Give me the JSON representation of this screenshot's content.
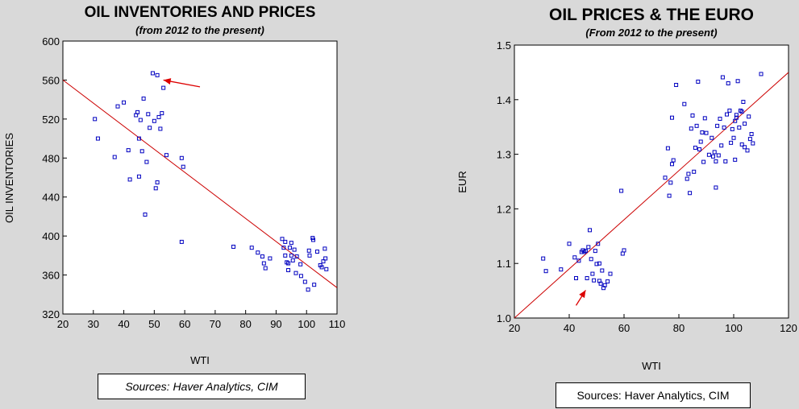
{
  "chart_data": [
    {
      "type": "scatter",
      "title": "OIL INVENTORIES AND PRICES",
      "subtitle": "(from 2012 to the present)",
      "xlabel": "WTI",
      "ylabel": "OIL INVENTORIES",
      "xlim": [
        20,
        110
      ],
      "ylim": [
        320,
        600
      ],
      "xticks": [
        "20",
        "30",
        "40",
        "50",
        "60",
        "70",
        "80",
        "90",
        "100",
        "110"
      ],
      "yticks": [
        "320",
        "360",
        "400",
        "440",
        "480",
        "520",
        "560",
        "600"
      ],
      "grid": false,
      "marker_color": "#0000c0",
      "fit_color": "#cc0000",
      "arrow_color": "#dd0000",
      "source": "Sources:  Haver Analytics, CIM",
      "fit_line": [
        [
          20,
          560
        ],
        [
          110,
          347
        ]
      ],
      "annotation_arrow": {
        "from": [
          65,
          553
        ],
        "to": [
          53,
          560
        ]
      },
      "points": [
        [
          30.5,
          520
        ],
        [
          31.5,
          500
        ],
        [
          37,
          481
        ],
        [
          38,
          533
        ],
        [
          40,
          537
        ],
        [
          41.5,
          488
        ],
        [
          42,
          458
        ],
        [
          44,
          524
        ],
        [
          44.5,
          527
        ],
        [
          45,
          500
        ],
        [
          45,
          461
        ],
        [
          45.5,
          519
        ],
        [
          46,
          487
        ],
        [
          46.5,
          541
        ],
        [
          47,
          422
        ],
        [
          47.5,
          476
        ],
        [
          48,
          525
        ],
        [
          48.5,
          511
        ],
        [
          49.5,
          567
        ],
        [
          50,
          518
        ],
        [
          50.5,
          449
        ],
        [
          51,
          455
        ],
        [
          51,
          565
        ],
        [
          51.5,
          522
        ],
        [
          52,
          510
        ],
        [
          52.5,
          526
        ],
        [
          53,
          552
        ],
        [
          54,
          483
        ],
        [
          59,
          480
        ],
        [
          59.5,
          471
        ],
        [
          59,
          394
        ],
        [
          76,
          389
        ],
        [
          82,
          388
        ],
        [
          84,
          383
        ],
        [
          85.5,
          379
        ],
        [
          86,
          372
        ],
        [
          86.5,
          367
        ],
        [
          88,
          377
        ],
        [
          92,
          397
        ],
        [
          92.5,
          388
        ],
        [
          93,
          394
        ],
        [
          93,
          380
        ],
        [
          93.5,
          373
        ],
        [
          94,
          365
        ],
        [
          94,
          372
        ],
        [
          94.5,
          388
        ],
        [
          95,
          393
        ],
        [
          95,
          380
        ],
        [
          95.5,
          375
        ],
        [
          96,
          386
        ],
        [
          96.5,
          362
        ],
        [
          96.8,
          379
        ],
        [
          98,
          371
        ],
        [
          98.2,
          359
        ],
        [
          99.5,
          353
        ],
        [
          100.5,
          345
        ],
        [
          100.8,
          385
        ],
        [
          101,
          380
        ],
        [
          102,
          398
        ],
        [
          102.2,
          396
        ],
        [
          102.5,
          350
        ],
        [
          103.5,
          384
        ],
        [
          104.5,
          370
        ],
        [
          105,
          368
        ],
        [
          105.5,
          374
        ],
        [
          106,
          387
        ],
        [
          106.2,
          377
        ],
        [
          106.5,
          366
        ]
      ]
    },
    {
      "type": "scatter",
      "title": "OIL PRICES & THE EURO",
      "subtitle": "(From 2012 to the present)",
      "xlabel": "WTI",
      "ylabel": "EUR",
      "xlim": [
        20,
        120
      ],
      "ylim": [
        1.0,
        1.5
      ],
      "xticks": [
        "20",
        "40",
        "60",
        "80",
        "100",
        "120"
      ],
      "yticks": [
        "1.0",
        "1.1",
        "1.2",
        "1.3",
        "1.4",
        "1.5"
      ],
      "grid": false,
      "marker_color": "#0000c0",
      "fit_color": "#cc0000",
      "arrow_color": "#dd0000",
      "source": "Sources:  Haver Analytics, CIM",
      "fit_line": [
        [
          20,
          1.0
        ],
        [
          120,
          1.45
        ]
      ],
      "annotation_arrow": {
        "from": [
          42.5,
          1.023
        ],
        "to": [
          46,
          1.051
        ]
      },
      "points": [
        [
          30.5,
          1.109
        ],
        [
          31.5,
          1.086
        ],
        [
          37,
          1.089
        ],
        [
          40,
          1.136
        ],
        [
          42,
          1.111
        ],
        [
          42.5,
          1.073
        ],
        [
          43.5,
          1.105
        ],
        [
          44.5,
          1.121
        ],
        [
          45,
          1.124
        ],
        [
          45.5,
          1.121
        ],
        [
          46,
          1.123
        ],
        [
          46.5,
          1.073
        ],
        [
          47,
          1.13
        ],
        [
          47.5,
          1.161
        ],
        [
          48,
          1.108
        ],
        [
          48.5,
          1.081
        ],
        [
          49,
          1.069
        ],
        [
          49.5,
          1.123
        ],
        [
          50,
          1.099
        ],
        [
          50.5,
          1.136
        ],
        [
          51,
          1.1
        ],
        [
          51,
          1.068
        ],
        [
          51.5,
          1.063
        ],
        [
          52,
          1.087
        ],
        [
          52.5,
          1.055
        ],
        [
          53,
          1.06
        ],
        [
          54,
          1.067
        ],
        [
          55,
          1.081
        ],
        [
          59,
          1.233
        ],
        [
          59.5,
          1.118
        ],
        [
          60,
          1.124
        ],
        [
          75,
          1.257
        ],
        [
          76,
          1.311
        ],
        [
          76.5,
          1.224
        ],
        [
          77,
          1.248
        ],
        [
          77.5,
          1.282
        ],
        [
          78,
          1.289
        ],
        [
          77.5,
          1.367
        ],
        [
          79,
          1.427
        ],
        [
          82,
          1.392
        ],
        [
          83,
          1.255
        ],
        [
          83.5,
          1.264
        ],
        [
          84,
          1.229
        ],
        [
          84.5,
          1.347
        ],
        [
          85,
          1.371
        ],
        [
          85.5,
          1.268
        ],
        [
          86,
          1.312
        ],
        [
          86.5,
          1.352
        ],
        [
          87,
          1.433
        ],
        [
          87.5,
          1.309
        ],
        [
          88,
          1.323
        ],
        [
          88.5,
          1.34
        ],
        [
          89,
          1.286
        ],
        [
          89.5,
          1.366
        ],
        [
          90,
          1.339
        ],
        [
          91,
          1.299
        ],
        [
          92,
          1.33
        ],
        [
          92.5,
          1.296
        ],
        [
          93,
          1.304
        ],
        [
          93.5,
          1.287
        ],
        [
          93.5,
          1.239
        ],
        [
          94,
          1.352
        ],
        [
          94.5,
          1.298
        ],
        [
          95,
          1.365
        ],
        [
          95.5,
          1.316
        ],
        [
          96,
          1.441
        ],
        [
          96.5,
          1.349
        ],
        [
          97,
          1.287
        ],
        [
          97.5,
          1.373
        ],
        [
          98,
          1.43
        ],
        [
          98.5,
          1.38
        ],
        [
          99,
          1.321
        ],
        [
          99.5,
          1.346
        ],
        [
          100,
          1.33
        ],
        [
          100.5,
          1.29
        ],
        [
          100.5,
          1.361
        ],
        [
          101,
          1.367
        ],
        [
          101,
          1.372
        ],
        [
          101.5,
          1.434
        ],
        [
          102,
          1.349
        ],
        [
          102.5,
          1.38
        ],
        [
          103,
          1.378
        ],
        [
          103,
          1.318
        ],
        [
          103.5,
          1.396
        ],
        [
          104,
          1.313
        ],
        [
          104,
          1.356
        ],
        [
          105,
          1.307
        ],
        [
          105.5,
          1.369
        ],
        [
          106,
          1.328
        ],
        [
          106.5,
          1.337
        ],
        [
          107,
          1.32
        ],
        [
          110,
          1.447
        ]
      ]
    }
  ]
}
